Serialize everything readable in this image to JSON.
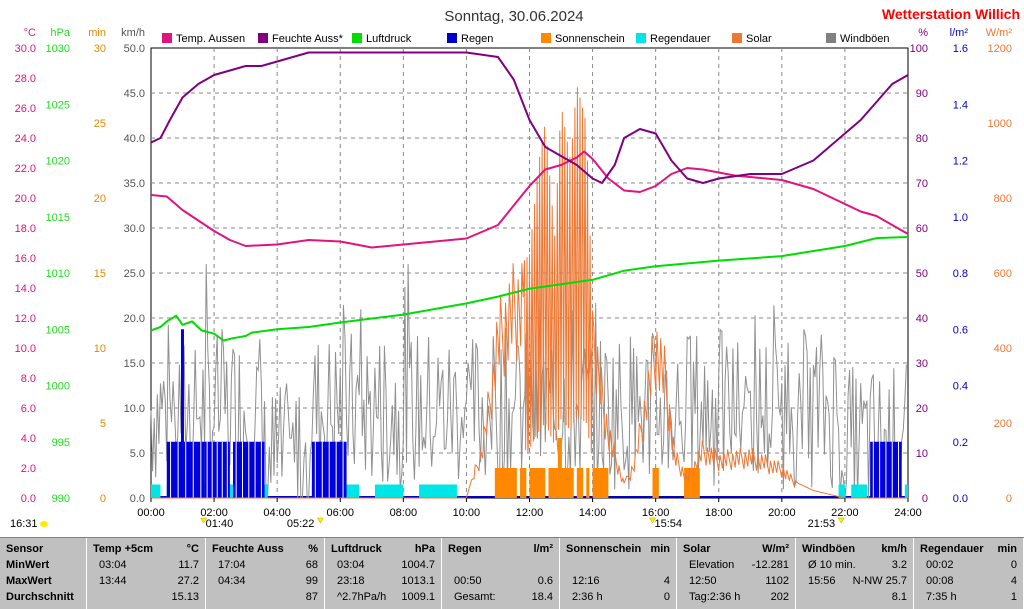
{
  "header": {
    "title": "Sonntag, 30.06.2024",
    "brand": "Wetterstation Willich",
    "brand_color": "#ff0000"
  },
  "chart_data": {
    "type": "line",
    "x_ticks": [
      "00:00",
      "02:00",
      "04:00",
      "06:00",
      "08:00",
      "10:00",
      "12:00",
      "14:00",
      "16:00",
      "18:00",
      "20:00",
      "22:00",
      "24:00"
    ],
    "axes": [
      {
        "unit": "°C",
        "color": "#e0147e",
        "ticks": [
          "30.0",
          "28.0",
          "26.0",
          "24.0",
          "22.0",
          "20.0",
          "18.0",
          "16.0",
          "14.0",
          "12.0",
          "10.0",
          "8.0",
          "6.0",
          "4.0",
          "2.0",
          "0.0"
        ]
      },
      {
        "unit": "hPa",
        "color": "#22dd22",
        "ticks": [
          "1030",
          "1025",
          "1020",
          "1015",
          "1010",
          "1005",
          "1000",
          "995",
          "990"
        ]
      },
      {
        "unit": "min",
        "color": "#e08a00",
        "ticks": [
          "30",
          "25",
          "20",
          "15",
          "10",
          "5",
          "0"
        ]
      },
      {
        "unit": "km/h",
        "color": "#555555",
        "ticks": [
          "50.0",
          "45.0",
          "40.0",
          "35.0",
          "30.0",
          "25.0",
          "20.0",
          "15.0",
          "10.0",
          "5.0",
          "0.0"
        ]
      },
      {
        "unit": "%",
        "color": "#800080",
        "ticks": [
          "100",
          "90",
          "80",
          "70",
          "60",
          "50",
          "40",
          "30",
          "20",
          "10",
          "0"
        ]
      },
      {
        "unit": "l/m²",
        "color": "#0000cc",
        "ticks": [
          "1.6",
          "1.4",
          "1.2",
          "1.0",
          "0.8",
          "0.6",
          "0.4",
          "0.2",
          "0.0"
        ]
      },
      {
        "unit": "W/m²",
        "color": "#ee7733",
        "ticks": [
          "1200",
          "1000",
          "800",
          "600",
          "400",
          "200",
          "0"
        ]
      }
    ],
    "legend": [
      {
        "name": "Temp. Aussen",
        "color": "#e0147e"
      },
      {
        "name": "Feuchte Auss*",
        "color": "#800080"
      },
      {
        "name": "Luftdruck",
        "color": "#00dd00"
      },
      {
        "name": "Regen",
        "color": "#0000cc"
      },
      {
        "name": "Sonnenschein",
        "color": "#ff8800"
      },
      {
        "name": "Regendauer",
        "color": "#00e5e5"
      },
      {
        "name": "Solar",
        "color": "#ee7733"
      },
      {
        "name": "Windböen",
        "color": "#808080"
      }
    ],
    "series": [
      {
        "name": "Temp. Aussen",
        "axis": "°C",
        "color": "#e0147e",
        "x": [
          0,
          0.5,
          1,
          1.5,
          2,
          2.5,
          3,
          4,
          5,
          6,
          7,
          8,
          9,
          10,
          11,
          11.5,
          12,
          12.5,
          13,
          13.5,
          13.73,
          14,
          14.5,
          15,
          15.5,
          16,
          16.5,
          17,
          17.5,
          18,
          18.5,
          19,
          20,
          21,
          22,
          22.5,
          23,
          23.5,
          24
        ],
        "y": [
          20.2,
          20.1,
          19.2,
          18.5,
          17.8,
          17.2,
          16.8,
          16.9,
          17.2,
          17.1,
          16.7,
          16.9,
          17.1,
          17.3,
          18.2,
          19.5,
          20.8,
          21.9,
          22.2,
          22.7,
          23.1,
          22.6,
          21.3,
          20.5,
          20.4,
          20.8,
          21.6,
          22.0,
          21.9,
          21.7,
          21.5,
          21.4,
          21.2,
          20.6,
          19.6,
          19.1,
          18.8,
          18.2,
          17.6
        ]
      },
      {
        "name": "Feuchte Auss*",
        "axis": "%",
        "color": "#800080",
        "x": [
          0,
          0.3,
          0.6,
          1,
          1.5,
          2,
          2.5,
          3,
          3.5,
          4,
          4.5,
          5,
          6,
          8,
          10,
          11,
          11.5,
          12,
          12.5,
          13,
          13.5,
          14,
          14.3,
          14.7,
          15,
          15.5,
          16,
          16.5,
          17,
          17.5,
          18,
          19,
          20,
          21,
          22,
          22.5,
          23,
          23.5,
          24
        ],
        "y": [
          79,
          80,
          84,
          89,
          92,
          94,
          95,
          96,
          96,
          97,
          98,
          99,
          99,
          99,
          99,
          98,
          93,
          84,
          78,
          76,
          74,
          71,
          70,
          74,
          80,
          82,
          81,
          75,
          71,
          70,
          71,
          72,
          72,
          75,
          81,
          84,
          88,
          92,
          94
        ]
      },
      {
        "name": "Luftdruck",
        "axis": "hPa",
        "color": "#00dd00",
        "x": [
          0,
          0.3,
          0.5,
          0.8,
          1,
          1.3,
          1.6,
          2,
          2.3,
          2.6,
          3,
          3.2,
          4,
          5,
          6,
          8,
          10,
          11,
          12,
          13,
          14,
          15,
          16,
          18,
          20,
          22,
          23,
          24
        ],
        "y": [
          1004.9,
          1005.2,
          1005.7,
          1006.2,
          1005.4,
          1005.7,
          1004.9,
          1004.6,
          1004.0,
          1004.2,
          1004.4,
          1004.7,
          1005.0,
          1005.2,
          1005.6,
          1006.3,
          1007.3,
          1007.9,
          1008.6,
          1009.0,
          1009.4,
          1010.2,
          1010.6,
          1011.1,
          1011.5,
          1012.4,
          1013.1,
          1013.2
        ]
      }
    ],
    "rain_x_ranges": [
      [
        0.5,
        1.7
      ],
      [
        1.7,
        2.5
      ],
      [
        2.6,
        3.6
      ],
      [
        5.1,
        6.2
      ],
      [
        22.8,
        23.8
      ]
    ],
    "rain_y_mm": 0.2,
    "rain_dur_x_ranges": [
      [
        0,
        0.3
      ],
      [
        0.5,
        3.7
      ],
      [
        5.1,
        6.6
      ],
      [
        7.1,
        8.0
      ],
      [
        8.5,
        9.7
      ],
      [
        21.8,
        22.0
      ],
      [
        22.2,
        22.7
      ],
      [
        23.0,
        23.5
      ],
      [
        23.9,
        24.0
      ]
    ],
    "sunshine_x_ranges": [
      [
        10.9,
        11.6
      ],
      [
        11.7,
        11.9
      ],
      [
        12.0,
        12.5
      ],
      [
        12.6,
        12.9
      ],
      [
        13.0,
        13.4
      ],
      [
        13.5,
        13.7
      ],
      [
        13.8,
        13.9
      ],
      [
        14.0,
        14.5
      ],
      [
        15.9,
        16.1
      ],
      [
        16.9,
        17.4
      ]
    ],
    "sunshine_min": 2,
    "solar_profile": {
      "x": [
        10,
        10.5,
        10.8,
        11,
        11.5,
        12,
        12.3,
        12.5,
        12.8,
        13,
        13.3,
        13.5,
        13.8,
        14,
        14.5,
        15,
        15.3,
        15.6,
        16,
        16.3,
        16.6,
        17,
        17.5,
        18,
        19,
        20,
        20.5,
        21,
        22
      ],
      "y": [
        0,
        150,
        350,
        500,
        600,
        650,
        900,
        1000,
        700,
        1050,
        900,
        1102,
        1000,
        500,
        200,
        40,
        100,
        250,
        480,
        380,
        130,
        60,
        150,
        120,
        130,
        90,
        40,
        20,
        0
      ]
    },
    "gust_kmh_typical": 9,
    "markers": {
      "sunrise": {
        "label": "01:40",
        "x": 1.67
      },
      "sunset": {
        "label": "05:22",
        "x": 5.37
      },
      "noon": {
        "label": "15:54",
        "x": 15.9
      },
      "dusk": {
        "label": "21:53",
        "x": 21.88
      },
      "left": {
        "label": "16:31"
      }
    }
  },
  "stats": {
    "row_labels": {
      "sensor": "Sensor",
      "min": "MinWert",
      "max": "MaxWert",
      "avg": "Durchschnitt"
    },
    "sections": [
      {
        "title": "Temp +5cm",
        "unit": "°C",
        "min": [
          "03:04",
          "11.7"
        ],
        "max": [
          "13:44",
          "27.2"
        ],
        "avg": [
          "",
          "15.13"
        ]
      },
      {
        "title": "Feuchte Auss",
        "unit": "%",
        "min": [
          "17:04",
          "68"
        ],
        "max": [
          "04:34",
          "99"
        ],
        "avg": [
          "",
          "87"
        ]
      },
      {
        "title": "Luftdruck",
        "unit": "hPa",
        "min": [
          "03:04",
          "1004.7"
        ],
        "max": [
          "23:18",
          "1013.1"
        ],
        "avg": [
          "^2.7hPa/h",
          "1009.1"
        ]
      },
      {
        "title": "Regen",
        "unit": "l/m²",
        "min": [
          "",
          ""
        ],
        "max": [
          "00:50",
          "0.6"
        ],
        "avg": [
          "Gesamt:",
          "18.4"
        ]
      },
      {
        "title": "Sonnenschein",
        "unit": "min",
        "min": [
          "",
          ""
        ],
        "max": [
          "12:16",
          "4"
        ],
        "avg": [
          "2:36 h",
          "0"
        ]
      },
      {
        "title": "Solar",
        "unit": "W/m²",
        "min": [
          "Elevation",
          "-12.281"
        ],
        "max": [
          "12:50",
          "1102"
        ],
        "avg": [
          "Tag:2:36 h",
          "202"
        ]
      },
      {
        "title": "Windböen",
        "unit": "km/h",
        "min": [
          "Ø 10 min.",
          "3.2"
        ],
        "max": [
          "15:56",
          "N-NW 25.7"
        ],
        "avg": [
          "",
          "8.1"
        ]
      },
      {
        "title": "Regendauer",
        "unit": "min",
        "min": [
          "00:02",
          "0"
        ],
        "max": [
          "00:08",
          "4"
        ],
        "avg": [
          "7:35 h",
          "1"
        ]
      }
    ]
  }
}
